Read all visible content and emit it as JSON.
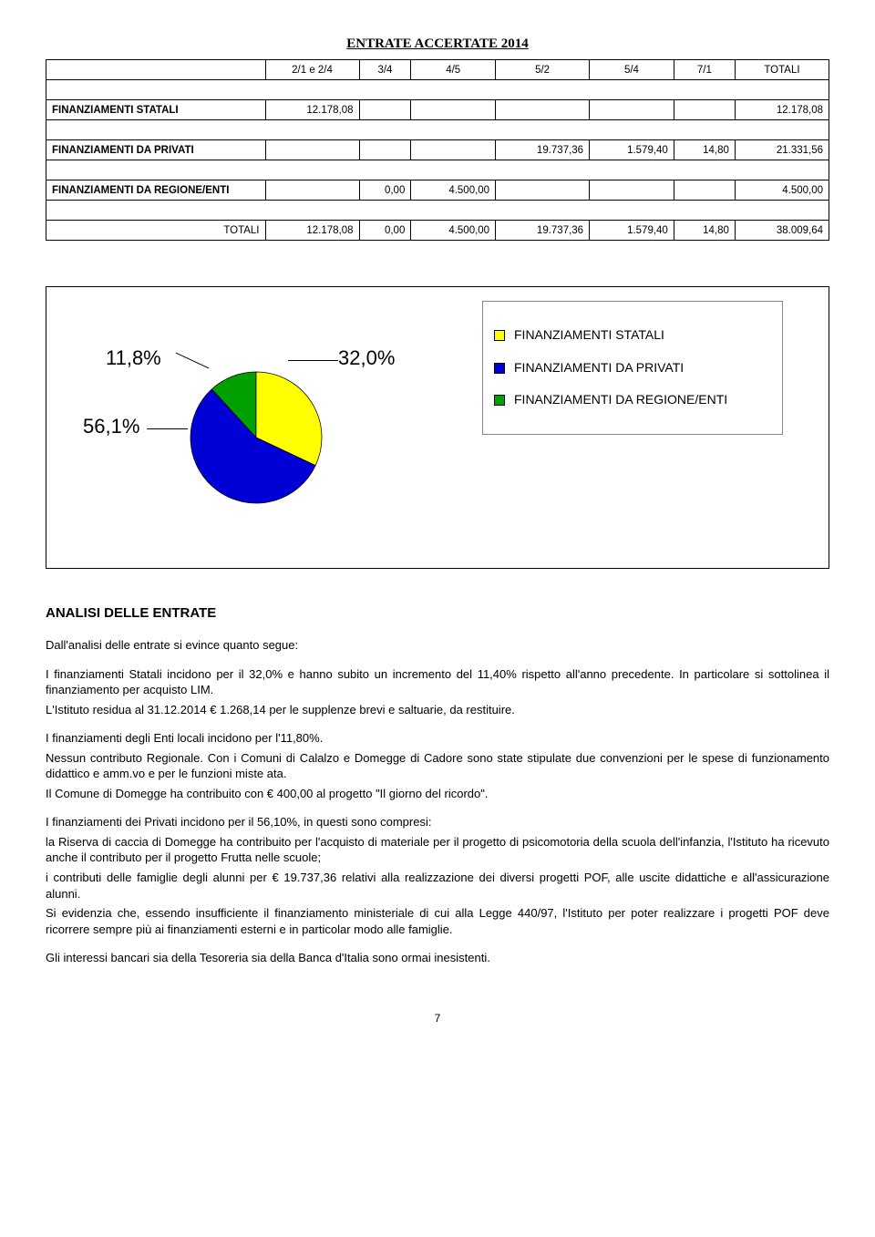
{
  "title": "ENTRATE ACCERTATE 2014",
  "table": {
    "headers": [
      "",
      "2/1 e 2/4",
      "3/4",
      "4/5",
      "5/2",
      "5/4",
      "7/1",
      "TOTALI"
    ],
    "rows": [
      {
        "label": "FINANZIAMENTI STATALI",
        "cells": [
          "12.178,08",
          "",
          "",
          "",
          "",
          "",
          "12.178,08"
        ]
      },
      {
        "label": "FINANZIAMENTI DA PRIVATI",
        "cells": [
          "",
          "",
          "",
          "19.737,36",
          "1.579,40",
          "14,80",
          "21.331,56"
        ]
      },
      {
        "label": "FINANZIAMENTI DA REGIONE/ENTI",
        "cells": [
          "",
          "0,00",
          "4.500,00",
          "",
          "",
          "",
          "4.500,00"
        ]
      }
    ],
    "totals": {
      "label": "TOTALI",
      "cells": [
        "12.178,08",
        "0,00",
        "4.500,00",
        "19.737,36",
        "1.579,40",
        "14,80",
        "38.009,64"
      ]
    }
  },
  "chart": {
    "type": "pie",
    "background_color": "#ffffff",
    "slices": [
      {
        "name": "FINANZIAMENTI STATALI",
        "pct": 32.0,
        "pct_label": "32,0%",
        "color": "#ffff00"
      },
      {
        "name": "FINANZIAMENTI DA PRIVATI",
        "pct": 56.1,
        "pct_label": "56,1%",
        "color": "#0000d6"
      },
      {
        "name": "FINANZIAMENTI DA REGIONE/ENTI",
        "pct": 11.8,
        "pct_label": "11,8%",
        "color": "#00a000"
      }
    ],
    "legend": [
      {
        "swatch": "#ffff00",
        "label": "FINANZIAMENTI STATALI"
      },
      {
        "swatch": "#0000d6",
        "label": "FINANZIAMENTI DA PRIVATI"
      },
      {
        "swatch": "#00a000",
        "label": "FINANZIAMENTI DA REGIONE/ENTI"
      }
    ],
    "pct_font_size": 22,
    "legend_font_size": 14
  },
  "section_heading": "ANALISI DELLE ENTRATE",
  "para_intro": "Dall'analisi delle entrate si evince quanto segue:",
  "para_1a": "I finanziamenti Statali incidono per il 32,0% e hanno subito un incremento del 11,40% rispetto all'anno precedente. In particolare si sottolinea il finanziamento per acquisto LIM.",
  "para_1b": "L'Istituto residua al 31.12.2014 €  1.268,14  per le supplenze brevi e saltuarie, da restituire.",
  "para_2a": "I finanziamenti degli Enti locali incidono per l'11,80%.",
  "para_2b": "Nessun contributo Regionale. Con i Comuni di Calalzo e Domegge di Cadore sono state stipulate due convenzioni per le spese di funzionamento didattico e amm.vo e per le funzioni miste ata.",
  "para_2c": "Il Comune di Domegge ha contribuito con € 400,00 al progetto \"Il giorno del ricordo\".",
  "para_3a": "I finanziamenti dei Privati incidono per il 56,10%, in questi sono compresi:",
  "para_3b": "la Riserva di caccia di Domegge ha contribuito per l'acquisto di materiale per il progetto di psicomotoria della scuola dell'infanzia, l'Istituto ha ricevuto anche il contributo per il progetto Frutta nelle scuole;",
  "para_3c": "i contributi delle famiglie degli alunni per € 19.737,36 relativi alla realizzazione dei diversi progetti POF, alle uscite didattiche e all'assicurazione alunni.",
  "para_3d": "Si evidenzia che, essendo insufficiente il finanziamento ministeriale di cui alla Legge 440/97, l'Istituto per poter realizzare i progetti POF deve ricorrere sempre più ai finanziamenti esterni e in particolar modo alle famiglie.",
  "para_4": "Gli interessi bancari sia della Tesoreria sia della Banca d'Italia sono ormai inesistenti.",
  "page_number": "7"
}
